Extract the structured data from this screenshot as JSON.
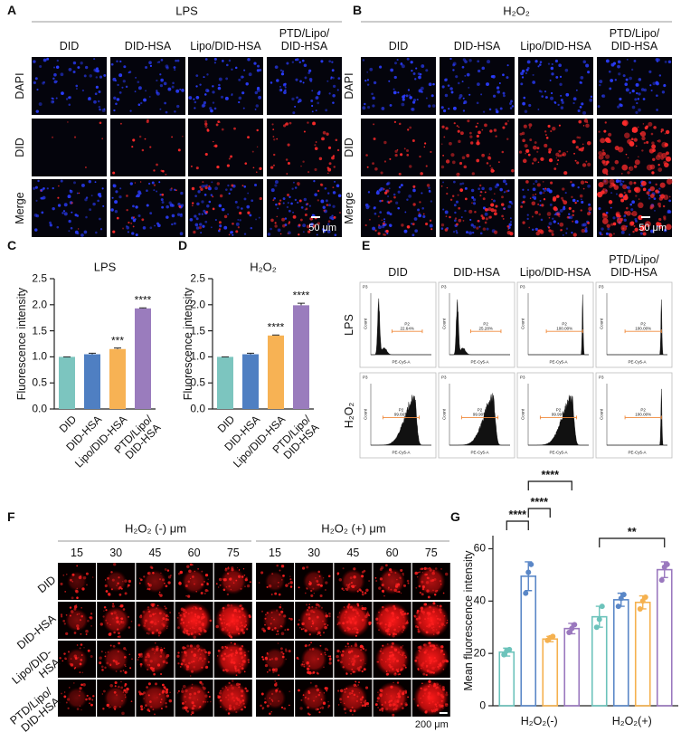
{
  "panels": {
    "A": {
      "letter": "A",
      "title": "LPS",
      "columns": [
        "DID",
        "DID-HSA",
        "Lipo/DID-HSA",
        "PTD/Lipo/\nDID-HSA"
      ],
      "rows": [
        "DAPI",
        "DID",
        "Merge"
      ],
      "scale_bar": "50 μm"
    },
    "B": {
      "letter": "B",
      "title": "H₂O₂",
      "columns": [
        "DID",
        "DID-HSA",
        "Lipo/DID-HSA",
        "PTD/Lipo/\nDID-HSA"
      ],
      "rows": [
        "DAPI",
        "DID",
        "Merge"
      ],
      "scale_bar": "50 μm"
    },
    "C": {
      "letter": "C"
    },
    "D": {
      "letter": "D"
    },
    "E": {
      "letter": "E",
      "columns": [
        "DID",
        "DID-HSA",
        "Lipo/DID-HSA",
        "PTD/Lipo/\nDID-HSA"
      ],
      "rows": [
        "LPS",
        "H₂O₂"
      ],
      "plot_title": "P3",
      "gate_name": "P2",
      "gates": [
        [
          "22.64%",
          "25.28%",
          "100.00%",
          "100.00%"
        ],
        [
          "99.66%",
          "99.90%",
          "99.99%",
          "100.00%"
        ]
      ],
      "y_label": "Count",
      "x_label": "PE-Cy5-A"
    },
    "F": {
      "letter": "F",
      "groups": [
        {
          "title": "H₂O₂ (-) μm",
          "depths": [
            15,
            30,
            45,
            60,
            75
          ]
        },
        {
          "title": "H₂O₂ (+) μm",
          "depths": [
            15,
            30,
            45,
            60,
            75
          ]
        }
      ],
      "rows": [
        "DID",
        "DID-HSA",
        "Lipo/DID-\nHSA",
        "PTD/Lipo/\nDID-HSA"
      ],
      "scale_bar": "200 μm"
    },
    "G": {
      "letter": "G"
    }
  },
  "chart_data": [
    {
      "type": "bar",
      "title": "LPS",
      "y_label": "Fluorescence intensity",
      "categories": [
        "DID",
        "DID-HSA",
        "Lipo/DID-HSA",
        "PTD/Lipo/\nDID-HSA"
      ],
      "values": [
        1.0,
        1.05,
        1.15,
        1.93
      ],
      "errors": [
        0,
        0.02,
        0.02,
        0.01
      ],
      "colors": [
        "#7cc5bf",
        "#4f7fc2",
        "#f7b254",
        "#9a7cbd"
      ],
      "annotations": [
        null,
        null,
        "***",
        "****"
      ],
      "ylim": [
        0,
        2.5
      ],
      "yticks": [
        {
          "value": 0,
          "label": "0.0"
        },
        0.5,
        {
          "value": 1,
          "label": "1.0"
        },
        1.5,
        {
          "value": 2,
          "label": "2.0"
        },
        2.5
      ]
    },
    {
      "type": "bar",
      "title": "H₂O₂",
      "y_label": "Fluorescence intensity",
      "categories": [
        "DID",
        "DID-HSA",
        "Lipo/DID-HSA",
        "PTD/Lipo/\nDID-HSA"
      ],
      "values": [
        1.0,
        1.05,
        1.41,
        1.99
      ],
      "errors": [
        0,
        0.02,
        0.01,
        0.04
      ],
      "colors": [
        "#7cc5bf",
        "#4f7fc2",
        "#f7b254",
        "#9a7cbd"
      ],
      "annotations": [
        null,
        null,
        "****",
        "****"
      ],
      "ylim": [
        0,
        2.5
      ],
      "yticks": [
        {
          "value": 0,
          "label": "0.0"
        },
        0.5,
        {
          "value": 1,
          "label": "1.0"
        },
        1.5,
        {
          "value": 2,
          "label": "2.0"
        },
        2.5
      ]
    },
    {
      "type": "bar",
      "y_label": "Mean fluorescence intensity",
      "categories": [
        "H₂O₂(-)",
        "H₂O₂(+)"
      ],
      "series": [
        {
          "color": "#6cc3bb",
          "values": [
            20.5,
            34
          ],
          "errors": [
            1.5,
            4
          ],
          "points": [
            [
              19.5,
              21,
              21.5
            ],
            [
              30,
              33,
              38
            ]
          ]
        },
        {
          "color": "#5a87c7",
          "values": [
            49.5,
            40.5
          ],
          "errors": [
            5.5,
            2.5
          ],
          "points": [
            [
              43,
              51,
              54
            ],
            [
              38,
              41,
              42.5
            ]
          ]
        },
        {
          "color": "#f5b14f",
          "values": [
            25.5,
            39.5
          ],
          "errors": [
            1,
            2.5
          ],
          "points": [
            [
              25,
              26,
              26.5
            ],
            [
              37,
              40,
              41.5
            ]
          ]
        },
        {
          "color": "#9a78be",
          "values": [
            29.5,
            52
          ],
          "errors": [
            2,
            3
          ],
          "points": [
            [
              28,
              29.5,
              31
            ],
            [
              48,
              53,
              54
            ]
          ]
        }
      ],
      "comparisons": [
        {
          "between": [
            [
              0,
              0
            ],
            [
              0,
              1
            ]
          ],
          "label": "****"
        },
        {
          "between": [
            [
              0,
              1
            ],
            [
              0,
              2
            ]
          ],
          "label": "****"
        },
        {
          "between": [
            [
              0,
              1
            ],
            [
              0,
              3
            ]
          ],
          "label": "****"
        },
        {
          "between": [
            [
              1,
              0
            ],
            [
              1,
              3
            ]
          ],
          "label": "**"
        }
      ],
      "ylim": [
        0,
        65
      ],
      "yticks": [
        0,
        20,
        40,
        60
      ]
    }
  ]
}
